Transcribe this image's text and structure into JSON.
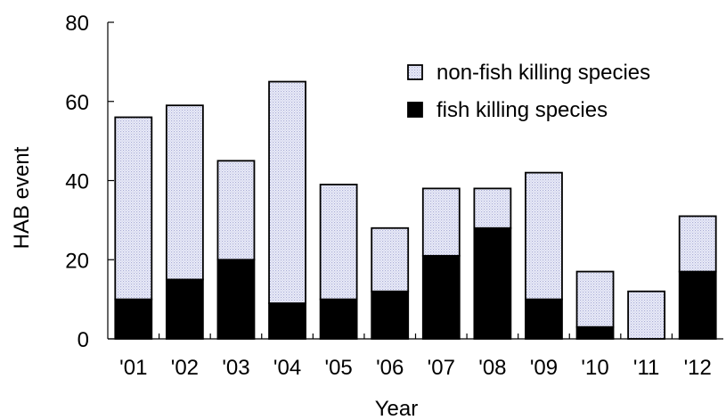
{
  "chart_data": {
    "type": "bar",
    "stacked": true,
    "categories": [
      "'01",
      "'02",
      "'03",
      "'04",
      "'05",
      "'06",
      "'07",
      "'08",
      "'09",
      "'10",
      "'11",
      "'12"
    ],
    "series": [
      {
        "name": "fish killing species",
        "values": [
          10,
          15,
          20,
          9,
          10,
          12,
          21,
          28,
          10,
          3,
          0,
          17
        ],
        "color": "#000000",
        "pattern": "solid"
      },
      {
        "name": "non-fish killing species",
        "values": [
          46,
          44,
          25,
          56,
          29,
          16,
          17,
          10,
          32,
          14,
          12,
          14
        ],
        "color": "#d8d8f0",
        "pattern": "dotted"
      }
    ],
    "title": "",
    "xlabel": "Year",
    "ylabel": "HAB event",
    "ylim": [
      0,
      80
    ],
    "yticks": [
      0,
      20,
      40,
      60,
      80
    ],
    "grid": false,
    "legend": {
      "placement": "top-right",
      "entries": [
        "non-fish killing species",
        "fish killing species"
      ]
    }
  }
}
